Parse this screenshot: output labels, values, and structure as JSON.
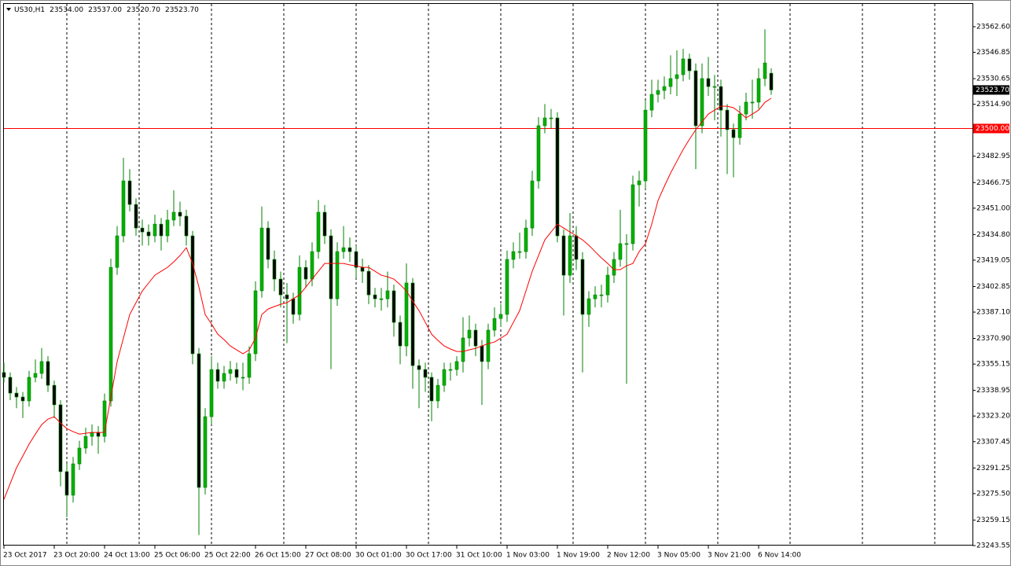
{
  "chart_data": {
    "type": "candlestick",
    "header": [
      "US30,H1",
      "23534.00",
      "23537.00",
      "23520.70",
      "23523.70"
    ],
    "up_color": "#00b000",
    "down_color": "#000000",
    "wick_color": "#008000",
    "open": [
      23350.0,
      23347.0,
      23337.3,
      23334.9,
      23332.5,
      23347.0,
      23349.4,
      23356.7,
      23342.1,
      23330.1,
      23289.0,
      23274.5,
      23293.8,
      23303.5,
      23310.7,
      23313.1,
      23310.7,
      23332.5,
      23414.6,
      23434.0,
      23467.8,
      23453.3,
      23438.8,
      23436.4,
      23434.0,
      23441.2,
      23434.0,
      23443.7,
      23448.5,
      23446.1,
      23434.0,
      23361.5,
      23279.3,
      23322.8,
      23351.8,
      23344.6,
      23349.4,
      23351.8,
      23347.0,
      23347.0,
      23361.5,
      23400.2,
      23438.8,
      23419.5,
      23407.4,
      23397.7,
      23395.3,
      23385.7,
      23414.6,
      23407.4,
      23424.3,
      23448.5,
      23434.0,
      23395.3,
      23424.3,
      23426.7,
      23424.3,
      23414.6,
      23412.2,
      23397.7,
      23395.3,
      23395.3,
      23400.2,
      23380.8,
      23366.3,
      23405.0,
      23354.2,
      23351.8,
      23347.0,
      23332.5,
      23342.1,
      23351.8,
      23351.8,
      23356.7,
      23371.2,
      23376.0,
      23366.3,
      23356.7,
      23376.0,
      23383.2,
      23385.7,
      23419.5,
      23424.3,
      23424.3,
      23438.8,
      23467.8,
      23501.7,
      23506.5,
      23506.5,
      23434.0,
      23409.8,
      23434.0,
      23419.5,
      23385.7,
      23395.3,
      23397.7,
      23397.7,
      23409.8,
      23419.5,
      23429.2,
      23429.2,
      23465.4,
      23467.8,
      23511.3,
      23521.0,
      23523.4,
      23525.8,
      23530.7,
      23533.1,
      23542.8,
      23535.5,
      23501.7,
      23530.7,
      23525.8,
      23525.8,
      23511.3,
      23499.3,
      23494.4,
      23508.9,
      23516.2,
      23516.2,
      23530.7,
      23534.0
    ],
    "high": [
      23356.0,
      23350.0,
      23341.0,
      23338.0,
      23351.0,
      23358.0,
      23365.0,
      23360.0,
      23345.0,
      23333.0,
      23294.0,
      23298.0,
      23308.0,
      23316.0,
      23318.0,
      23317.0,
      23337.0,
      23420.0,
      23440.0,
      23482.0,
      23475.0,
      23457.0,
      23444.0,
      23441.0,
      23447.0,
      23445.0,
      23450.0,
      23462.0,
      23455.0,
      23450.0,
      23437.0,
      23365.0,
      23328.0,
      23360.0,
      23356.0,
      23354.0,
      23357.0,
      23356.0,
      23356.0,
      23366.0,
      23406.0,
      23452.0,
      23443.0,
      23425.0,
      23412.0,
      23405.0,
      23399.0,
      23422.0,
      23419.0,
      23430.0,
      23456.0,
      23453.0,
      23438.0,
      23430.0,
      23440.0,
      23433.0,
      23428.0,
      23420.0,
      23416.0,
      23402.0,
      23402.0,
      23412.0,
      23404.0,
      23385.0,
      23417.0,
      23408.0,
      23358.0,
      23356.0,
      23350.0,
      23346.0,
      23356.0,
      23356.0,
      23360.0,
      23384.0,
      23385.0,
      23380.0,
      23370.0,
      23380.0,
      23390.0,
      23392.0,
      23425.0,
      23430.0,
      23436.0,
      23444.0,
      23474.0,
      23507.0,
      23515.0,
      23512.0,
      23510.0,
      23438.0,
      23448.0,
      23440.0,
      23424.0,
      23400.0,
      23403.0,
      23404.0,
      23415.0,
      23424.0,
      23450.0,
      23435.0,
      23471.0,
      23474.0,
      23517.0,
      23530.0,
      23530.0,
      23532.0,
      23545.0,
      23548.0,
      23549.0,
      23546.0,
      23540.0,
      23540.0,
      23544.0,
      23533.0,
      23530.0,
      23515.0,
      23503.0,
      23514.0,
      23522.0,
      23530.0,
      23537.0,
      23561.0,
      23537.0
    ],
    "low": [
      23344.0,
      23333.0,
      23328.0,
      23322.0,
      23329.0,
      23344.0,
      23346.0,
      23338.0,
      23322.0,
      23280.0,
      23261.0,
      23270.0,
      23290.0,
      23300.0,
      23305.0,
      23300.0,
      23307.0,
      23329.0,
      23410.0,
      23430.0,
      23449.0,
      23434.0,
      23428.0,
      23428.0,
      23430.0,
      23425.0,
      23430.0,
      23440.0,
      23440.0,
      23428.0,
      23355.0,
      23250.0,
      23275.0,
      23318.0,
      23340.0,
      23340.0,
      23345.0,
      23343.0,
      23339.0,
      23343.0,
      23357.0,
      23396.0,
      23414.0,
      23400.0,
      23390.0,
      23368.0,
      23380.0,
      23382.0,
      23402.0,
      23403.0,
      23420.0,
      23429.0,
      23352.0,
      23391.0,
      23420.0,
      23418.0,
      23408.0,
      23405.0,
      23392.0,
      23390.0,
      23388.0,
      23390.0,
      23372.0,
      23355.0,
      23360.0,
      23340.0,
      23328.0,
      23338.0,
      23320.0,
      23328.0,
      23338.0,
      23345.0,
      23348.0,
      23350.0,
      23366.0,
      23360.0,
      23330.0,
      23352.0,
      23372.0,
      23378.0,
      23381.0,
      23414.0,
      23420.0,
      23420.0,
      23434.0,
      23463.0,
      23497.0,
      23500.0,
      23430.0,
      23385.0,
      23405.0,
      23413.0,
      23350.0,
      23378.0,
      23390.0,
      23390.0,
      23393.0,
      23405.0,
      23415.0,
      23343.0,
      23425.0,
      23452.0,
      23463.0,
      23507.0,
      23516.0,
      23518.0,
      23521.0,
      23520.0,
      23529.0,
      23530.0,
      23475.0,
      23497.0,
      23520.0,
      23505.0,
      23495.0,
      23472.0,
      23470.0,
      23490.0,
      23505.0,
      23506.0,
      23512.0,
      23526.0,
      23520.7
    ],
    "close": [
      23347.0,
      23337.3,
      23334.9,
      23332.5,
      23347.0,
      23349.4,
      23356.7,
      23342.1,
      23330.1,
      23289.0,
      23274.5,
      23293.8,
      23303.5,
      23310.7,
      23313.1,
      23310.7,
      23332.5,
      23414.6,
      23434.0,
      23467.8,
      23453.3,
      23438.8,
      23436.4,
      23434.0,
      23441.2,
      23434.0,
      23443.7,
      23448.5,
      23446.1,
      23434.0,
      23361.5,
      23279.3,
      23322.8,
      23351.8,
      23344.6,
      23349.4,
      23351.8,
      23347.0,
      23347.0,
      23361.5,
      23400.2,
      23438.8,
      23419.5,
      23407.4,
      23397.7,
      23395.3,
      23385.7,
      23414.6,
      23407.4,
      23424.3,
      23448.5,
      23434.0,
      23395.3,
      23424.3,
      23426.7,
      23424.3,
      23414.6,
      23412.2,
      23397.7,
      23395.3,
      23395.3,
      23400.2,
      23380.8,
      23366.3,
      23405.0,
      23354.2,
      23351.8,
      23347.0,
      23332.5,
      23342.1,
      23351.8,
      23351.8,
      23356.7,
      23371.2,
      23376.0,
      23366.3,
      23356.7,
      23376.0,
      23383.2,
      23385.7,
      23419.5,
      23424.3,
      23424.3,
      23438.8,
      23467.8,
      23501.7,
      23506.5,
      23506.5,
      23434.0,
      23409.8,
      23434.0,
      23419.5,
      23385.7,
      23395.3,
      23397.7,
      23397.7,
      23409.8,
      23419.5,
      23429.2,
      23429.2,
      23465.4,
      23467.8,
      23511.3,
      23521.0,
      23523.4,
      23525.8,
      23530.7,
      23533.1,
      23542.8,
      23535.5,
      23501.7,
      23530.7,
      23525.8,
      23525.8,
      23511.3,
      23499.3,
      23494.4,
      23508.9,
      23516.2,
      23516.2,
      23530.7,
      23540.3,
      23523.7
    ],
    "series": [
      {
        "color": "#ff0000",
        "values": [
          23272.0,
          23281.7,
          23291.4,
          23298.6,
          23305.9,
          23312.1,
          23317.9,
          23321.3,
          23322.8,
          23318.9,
          23315.5,
          23313.6,
          23312.1,
          23312.6,
          23313.1,
          23313.1,
          23313.1,
          23334.9,
          23356.6,
          23371.1,
          23385.6,
          23392.9,
          23400.1,
          23405.0,
          23409.8,
          23412.2,
          23414.6,
          23418.0,
          23421.9,
          23426.7,
          23417.0,
          23402.5,
          23385.6,
          23379.8,
          23373.5,
          23370.2,
          23366.3,
          23363.9,
          23361.5,
          23363.9,
          23371.1,
          23385.6,
          23389.0,
          23390.5,
          23391.9,
          23392.9,
          23395.3,
          23397.7,
          23402.5,
          23407.4,
          23412.2,
          23417.0,
          23417.0,
          23417.0,
          23417.0,
          23416.1,
          23415.6,
          23414.6,
          23414.6,
          23412.2,
          23409.8,
          23408.8,
          23407.4,
          23404.0,
          23400.1,
          23393.8,
          23388.0,
          23380.8,
          23373.5,
          23369.7,
          23366.3,
          23364.4,
          23362.9,
          23362.9,
          23363.9,
          23364.8,
          23366.3,
          23367.7,
          23368.7,
          23371.1,
          23373.5,
          23380.8,
          23388.0,
          23400.1,
          23412.2,
          23421.9,
          23431.5,
          23436.4,
          23441.2,
          23438.8,
          23436.4,
          23434.0,
          23431.5,
          23428.2,
          23424.3,
          23420.4,
          23417.0,
          23413.2,
          23413.2,
          23415.6,
          23417.0,
          23424.3,
          23429.1,
          23441.2,
          23455.7,
          23464.4,
          23472.6,
          23479.9,
          23487.1,
          23493.4,
          23499.2,
          23504.1,
          23508.9,
          23511.3,
          23513.7,
          23513.7,
          23512.8,
          23509.9,
          23506.5,
          23508.9,
          23511.3,
          23516.1,
          23518.6
        ]
      }
    ],
    "hline": {
      "value": 23500.0,
      "label": "23500.00",
      "color": "#ff0000"
    },
    "current_price": {
      "value": 23523.7,
      "label": "23523.70"
    },
    "ylim": [
      23243.55,
      23576.6
    ],
    "yticks": [
      {
        "value": 23562.6,
        "label": "23562.60"
      },
      {
        "value": 23546.85,
        "label": "23546.85"
      },
      {
        "value": 23530.65,
        "label": "23530.65"
      },
      {
        "value": 23514.9,
        "label": "23514.90"
      },
      {
        "value": 23482.95,
        "label": "23482.95"
      },
      {
        "value": 23466.75,
        "label": "23466.75"
      },
      {
        "value": 23451.0,
        "label": "23451.00"
      },
      {
        "value": 23434.8,
        "label": "23434.80"
      },
      {
        "value": 23419.05,
        "label": "23419.05"
      },
      {
        "value": 23402.85,
        "label": "23402.85"
      },
      {
        "value": 23387.1,
        "label": "23387.10"
      },
      {
        "value": 23370.9,
        "label": "23370.90"
      },
      {
        "value": 23355.15,
        "label": "23355.15"
      },
      {
        "value": 23338.95,
        "label": "23338.95"
      },
      {
        "value": 23323.2,
        "label": "23323.20"
      },
      {
        "value": 23307.45,
        "label": "23307.45"
      },
      {
        "value": 23291.25,
        "label": "23291.25"
      },
      {
        "value": 23275.5,
        "label": "23275.50"
      },
      {
        "value": 23259.15,
        "label": "23259.15"
      },
      {
        "value": 23243.55,
        "label": "23243.55"
      }
    ],
    "xticks": [
      {
        "value": 0,
        "label": "23 Oct 2017"
      },
      {
        "value": 8,
        "label": "23 Oct 20:00"
      },
      {
        "value": 16,
        "label": "24 Oct 13:00"
      },
      {
        "value": 24,
        "label": "25 Oct 06:00"
      },
      {
        "value": 32,
        "label": "25 Oct 22:00"
      },
      {
        "value": 40,
        "label": "26 Oct 15:00"
      },
      {
        "value": 48,
        "label": "27 Oct 08:00"
      },
      {
        "value": 56,
        "label": "30 Oct 01:00"
      },
      {
        "value": 64,
        "label": "30 Oct 17:00"
      },
      {
        "value": 72,
        "label": "31 Oct 10:00"
      },
      {
        "value": 80,
        "label": "1 Nov 03:00"
      },
      {
        "value": 88,
        "label": "1 Nov 19:00"
      },
      {
        "value": 96,
        "label": "2 Nov 12:00"
      },
      {
        "value": 104,
        "label": "3 Nov 05:00"
      },
      {
        "value": 112,
        "label": "3 Nov 21:00"
      },
      {
        "value": 120,
        "label": "6 Nov 14:00"
      }
    ]
  }
}
